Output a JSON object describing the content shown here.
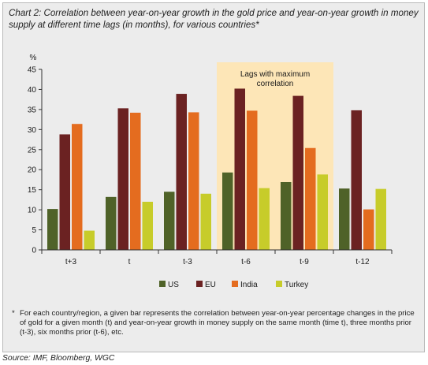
{
  "title": "Chart 2: Correlation between year-on-year growth in the gold price and year-on-year growth in money supply at different time lags (in months), for various countries*",
  "source": "Source: IMF, Bloomberg, WGC",
  "footnote": {
    "marker": "*",
    "text": "For each country/region, a given bar represents the correlation between year-on-year percentage changes in the price of gold for a given month (t) and year-on-year growth in money supply on the same month (time t), three months prior (t-3), six months prior (t-6), etc."
  },
  "chart_data": {
    "type": "bar",
    "y_unit": "%",
    "ylim": [
      0,
      45
    ],
    "yticks": [
      0,
      5,
      10,
      15,
      20,
      25,
      30,
      35,
      40,
      45
    ],
    "categories": [
      "t+3",
      "t",
      "t-3",
      "t-6",
      "t-9",
      "t-12"
    ],
    "series": [
      {
        "name": "US",
        "color": "#4f6228",
        "values": [
          10.2,
          13.2,
          14.5,
          19.3,
          16.9,
          15.3
        ]
      },
      {
        "name": "EU",
        "color": "#6b2222",
        "values": [
          28.8,
          35.3,
          38.9,
          40.2,
          38.4,
          34.8
        ]
      },
      {
        "name": "India",
        "color": "#e46c1f",
        "values": [
          31.4,
          34.2,
          34.3,
          34.7,
          25.4,
          10.1
        ]
      },
      {
        "name": "Turkey",
        "color": "#c7cc2a",
        "values": [
          4.8,
          12.0,
          14.0,
          15.4,
          18.8,
          15.2
        ]
      }
    ],
    "highlight": {
      "label_line1": "Lags with maximum",
      "label_line2": "correlation",
      "categories": [
        "t-6",
        "t-9"
      ],
      "color": "#fde6b7"
    },
    "legend_position": "bottom"
  }
}
